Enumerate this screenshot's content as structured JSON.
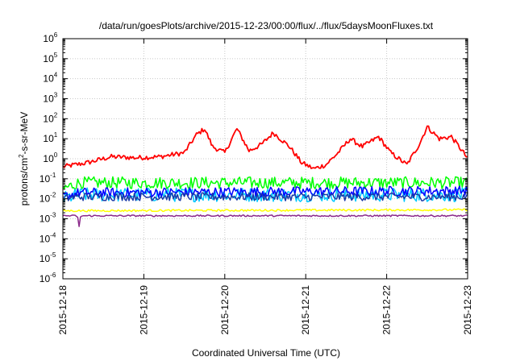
{
  "chart_data": {
    "type": "line",
    "title": "/data/run/goesPlots/archive/2015-12-23/00:00/flux/../flux/5daysMoonFluxes.txt",
    "xlabel": "Coordinated Universal Time (UTC)",
    "ylabel": {
      "base": "protons/cm",
      "sup": "2",
      "rest": "-s-sr-MeV"
    },
    "x_ticks": [
      "2015-12-18",
      "2015-12-19",
      "2015-12-20",
      "2015-12-21",
      "2015-12-22",
      "2015-12-23"
    ],
    "xlim_days": [
      0,
      5
    ],
    "y_scale": "log",
    "ylim": [
      1e-06,
      1000000.0
    ],
    "y_tick_exponents": [
      -6,
      -5,
      -4,
      -3,
      -2,
      -1,
      0,
      1,
      2,
      3,
      4,
      5,
      6
    ],
    "grid": true,
    "series": [
      {
        "color": "#ff0000",
        "base_log": -0.3,
        "noise": 0.12,
        "profile": [
          [
            0,
            -0.4
          ],
          [
            0.3,
            -0.2
          ],
          [
            0.6,
            0.1
          ],
          [
            0.9,
            0.05
          ],
          [
            1.2,
            0.1
          ],
          [
            1.5,
            0.3
          ],
          [
            1.65,
            1.2
          ],
          [
            1.75,
            1.5
          ],
          [
            1.85,
            0.6
          ],
          [
            2.0,
            0.3
          ],
          [
            2.15,
            1.5
          ],
          [
            2.3,
            0.4
          ],
          [
            2.45,
            0.7
          ],
          [
            2.6,
            1.3
          ],
          [
            2.8,
            0.6
          ],
          [
            2.95,
            -0.2
          ],
          [
            3.1,
            -0.5
          ],
          [
            3.25,
            -0.3
          ],
          [
            3.4,
            0.3
          ],
          [
            3.55,
            1.0
          ],
          [
            3.7,
            0.6
          ],
          [
            3.9,
            1.1
          ],
          [
            4.05,
            0.3
          ],
          [
            4.25,
            -0.3
          ],
          [
            4.4,
            0.7
          ],
          [
            4.5,
            1.6
          ],
          [
            4.65,
            1.0
          ],
          [
            4.8,
            1.1
          ],
          [
            4.95,
            0.3
          ],
          [
            5.0,
            0.0
          ]
        ]
      },
      {
        "color": "#00ff00",
        "base_log": -1.3,
        "noise": 0.3,
        "profile": [
          [
            0,
            -1.5
          ],
          [
            0.2,
            -1.2
          ],
          [
            5,
            -1.2
          ]
        ]
      },
      {
        "color": "#00c8ff",
        "base_log": -1.8,
        "noise": 0.35,
        "profile": [
          [
            0,
            -2.0
          ],
          [
            0.2,
            -1.8
          ],
          [
            5,
            -1.8
          ]
        ]
      },
      {
        "color": "#0000ff",
        "base_log": -1.7,
        "noise": 0.25,
        "profile": [
          [
            0,
            -1.9
          ],
          [
            0.2,
            -1.7
          ],
          [
            5,
            -1.6
          ]
        ]
      },
      {
        "color": "#1a3aa8",
        "base_log": -1.9,
        "noise": 0.2,
        "profile": [
          [
            0,
            -2.0
          ],
          [
            0.2,
            -1.9
          ],
          [
            5,
            -1.9
          ]
        ]
      },
      {
        "color": "#ffff00",
        "base_log": -2.55,
        "noise": 0.05,
        "profile": [
          [
            0,
            -2.6
          ],
          [
            5,
            -2.55
          ]
        ]
      },
      {
        "color": "#8b2a8b",
        "base_log": -2.85,
        "noise": 0.04,
        "profile": [
          [
            0,
            -2.85
          ],
          [
            0.18,
            -2.85
          ],
          [
            0.2,
            -3.4
          ],
          [
            0.22,
            -2.85
          ],
          [
            5,
            -2.85
          ]
        ]
      }
    ]
  }
}
